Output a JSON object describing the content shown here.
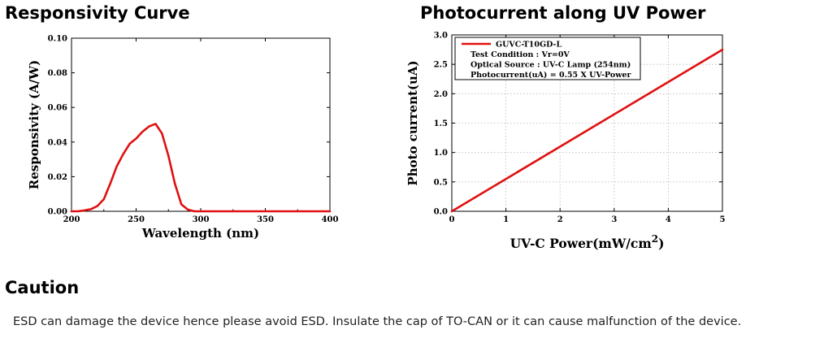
{
  "titles": {
    "chart1": "Responsivity Curve",
    "chart2": "Photocurrent along UV Power",
    "caution": "Caution"
  },
  "caution_text": "ESD can damage the device hence please avoid ESD. Insulate the cap of TO-CAN or it can cause malfunction of the device.",
  "chart_data": [
    {
      "type": "line",
      "title": "Responsivity Curve",
      "xlabel": "Wavelength (nm)",
      "ylabel": "Responsivity (A/W)",
      "xlim": [
        200,
        400
      ],
      "ylim": [
        0,
        0.1
      ],
      "xticks": [
        "200",
        "250",
        "300",
        "350",
        "400"
      ],
      "yticks": [
        "0.00",
        "0.02",
        "0.04",
        "0.06",
        "0.08",
        "0.10"
      ],
      "grid": false,
      "color": "#e01010",
      "series": [
        {
          "x": [
            200,
            205,
            210,
            215,
            220,
            225,
            230,
            235,
            240,
            245,
            250,
            255,
            260,
            265,
            270,
            275,
            280,
            285,
            290,
            295,
            300,
            310,
            320,
            340,
            360,
            380,
            400
          ],
          "y": [
            0.0,
            0.0,
            0.0005,
            0.0012,
            0.003,
            0.007,
            0.016,
            0.026,
            0.033,
            0.039,
            0.042,
            0.046,
            0.049,
            0.0505,
            0.045,
            0.032,
            0.016,
            0.004,
            0.001,
            0.0,
            0.0,
            0.0,
            0.0,
            0.0,
            0.0,
            0.0,
            0.0
          ]
        }
      ]
    },
    {
      "type": "line",
      "title": "Photocurrent along UV Power",
      "xlabel": "UV-C Power(mW/cm",
      "xlabel_sup": "2",
      "xlabel_tail": ")",
      "ylabel": "Photo current(uA)",
      "xlim": [
        0,
        5
      ],
      "ylim": [
        0,
        3.0
      ],
      "xticks": [
        "0",
        "1",
        "2",
        "3",
        "4",
        "5"
      ],
      "yticks": [
        "0.0",
        "0.5",
        "1.0",
        "1.5",
        "2.0",
        "2.5",
        "3.0"
      ],
      "grid": true,
      "color": "#e01010",
      "legend_position": "top-left",
      "legend": {
        "series_name": "GUVC-T10GD-L",
        "lines": [
          "Test Condition : Vr=0V",
          "Optical Source : UV-C Lamp (254nm)",
          "Photocurrent(uA) = 0.55 X UV-Power"
        ]
      },
      "series": [
        {
          "name": "GUVC-T10GD-L",
          "x": [
            0,
            5
          ],
          "y": [
            0,
            2.75
          ]
        }
      ]
    }
  ]
}
